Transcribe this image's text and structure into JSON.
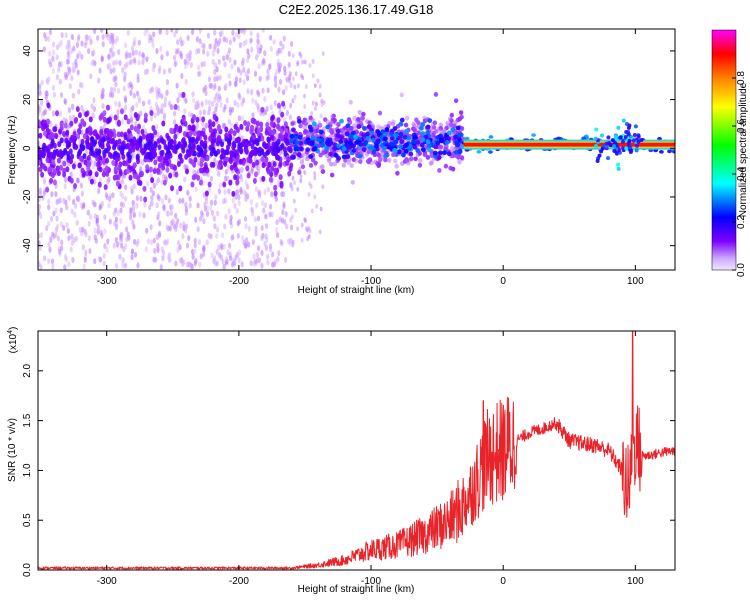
{
  "page_title": "C2E2.2025.136.17.49.G18",
  "chart_data": [
    {
      "type": "heatmap",
      "xlabel": "Height of straight line (km)",
      "ylabel": "Frequency (Hz)",
      "xlim": [
        -352,
        130
      ],
      "ylim": [
        -50,
        49
      ],
      "xticks": [
        -300,
        -200,
        -100,
        0,
        100
      ],
      "yticks": [
        -40,
        -20,
        0,
        20,
        40
      ],
      "colorbar": {
        "label": "Normalized spectral amplitude",
        "range": [
          0.0,
          1.0
        ],
        "ticks": [
          0.0,
          0.2,
          0.4,
          0.6,
          0.8
        ],
        "colormap": [
          "#f2e6ff",
          "#7f00ff",
          "#0000ff",
          "#00ffff",
          "#00ff00",
          "#ffff00",
          "#ff8000",
          "#ff0000",
          "#ff00ff"
        ]
      },
      "features": [
        {
          "x_range": [
            -352,
            -160
          ],
          "freq_center": 0,
          "freq_spread": 49,
          "amplitude": 0.1
        },
        {
          "x_range": [
            -160,
            -30
          ],
          "freq_center": 3,
          "freq_spread": 10,
          "amplitude": 0.35
        },
        {
          "x_range": [
            -30,
            130
          ],
          "freq_center": 1.5,
          "freq_spread": 2,
          "amplitude": 0.9
        }
      ]
    },
    {
      "type": "line",
      "xlabel": "Height of straight line (km)",
      "ylabel": "SNR (10 * v/v)",
      "y_multiplier": "(x10",
      "y_multiplier_exp": "4",
      "y_multiplier_close": ")",
      "xlim": [
        -352,
        130
      ],
      "ylim": [
        0,
        2.4
      ],
      "xticks": [
        -300,
        -200,
        -100,
        0,
        100
      ],
      "yticks": [
        "0.0",
        "0.5",
        "1.0",
        "1.5",
        "2.0"
      ],
      "series": [
        {
          "color": "#e8242a",
          "x": [
            -352,
            -300,
            -250,
            -200,
            -160,
            -140,
            -120,
            -100,
            -80,
            -60,
            -40,
            -30,
            -20,
            -15,
            -10,
            0,
            10,
            20,
            30,
            35,
            40,
            50,
            60,
            70,
            80,
            90,
            95,
            100,
            105,
            110,
            120,
            130
          ],
          "y": [
            0.02,
            0.02,
            0.02,
            0.02,
            0.02,
            0.05,
            0.1,
            0.2,
            0.25,
            0.35,
            0.5,
            0.65,
            0.9,
            1.05,
            1.15,
            1.2,
            1.3,
            1.38,
            1.42,
            1.45,
            1.48,
            1.3,
            1.27,
            1.25,
            1.2,
            1.0,
            0.8,
            1.3,
            1.15,
            1.15,
            1.18,
            1.2
          ],
          "peaks": [
            {
              "x": -15,
              "y": 1.7
            },
            {
              "x": 98,
              "y": 2.4
            }
          ]
        }
      ]
    }
  ]
}
